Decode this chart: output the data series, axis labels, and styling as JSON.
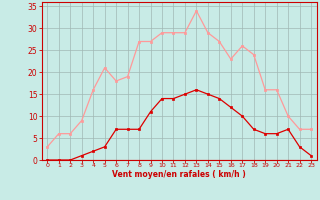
{
  "hours": [
    0,
    1,
    2,
    3,
    4,
    5,
    6,
    7,
    8,
    9,
    10,
    11,
    12,
    13,
    14,
    15,
    16,
    17,
    18,
    19,
    20,
    21,
    22,
    23
  ],
  "wind_avg": [
    0,
    0,
    0,
    1,
    2,
    3,
    7,
    7,
    7,
    11,
    14,
    14,
    15,
    16,
    15,
    14,
    12,
    10,
    7,
    6,
    6,
    7,
    3,
    1
  ],
  "wind_gust": [
    3,
    6,
    6,
    9,
    16,
    21,
    18,
    19,
    27,
    27,
    29,
    29,
    29,
    34,
    29,
    27,
    23,
    26,
    24,
    16,
    16,
    10,
    7,
    7
  ],
  "bg_color": "#c8ebe6",
  "grid_color": "#a0b8b4",
  "avg_color": "#dd0000",
  "gust_color": "#ff9999",
  "xlabel": "Vent moyen/en rafales ( km/h )",
  "xlabel_color": "#cc0000",
  "tick_color": "#cc0000",
  "yticks": [
    0,
    5,
    10,
    15,
    20,
    25,
    30,
    35
  ],
  "ylim": [
    0,
    36
  ],
  "xlim": [
    0,
    23
  ]
}
